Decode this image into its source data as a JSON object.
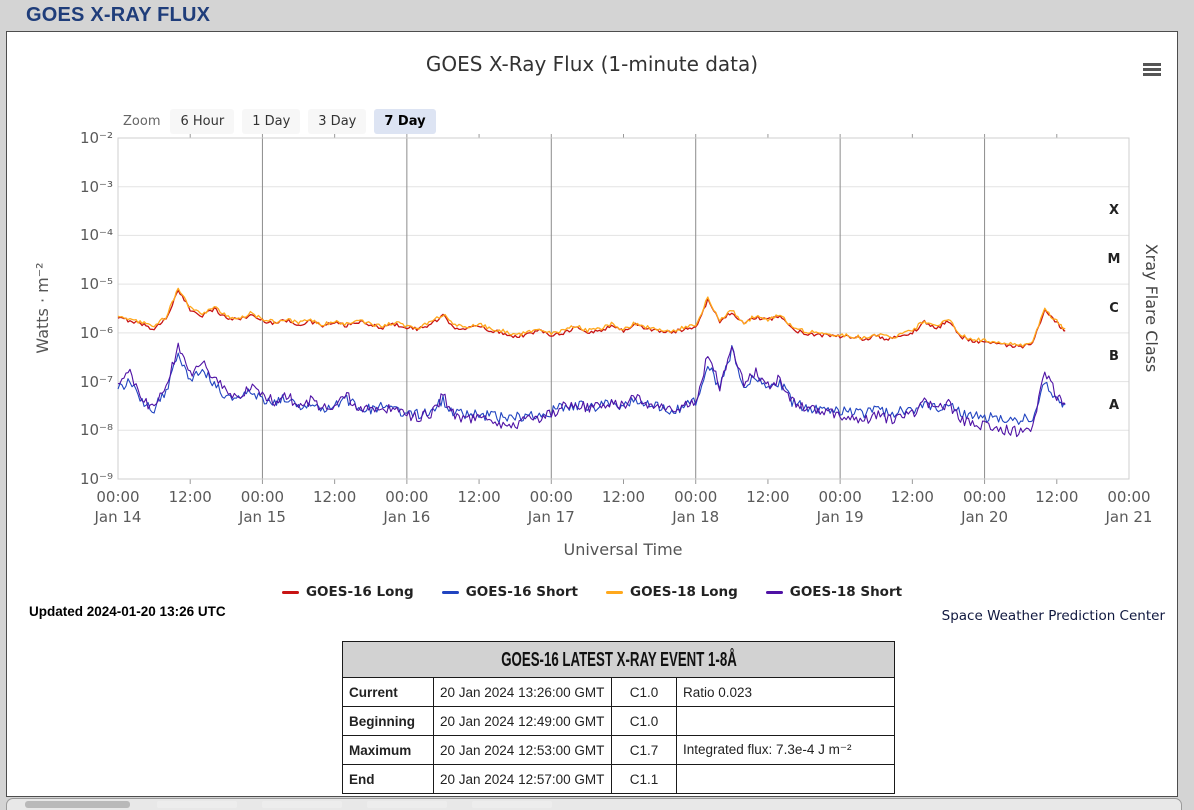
{
  "page": {
    "header_title": "GOES X-RAY FLUX"
  },
  "chart": {
    "title": "GOES X-Ray Flux (1-minute data)",
    "zoom": {
      "label": "Zoom",
      "buttons": [
        "6 Hour",
        "1 Day",
        "3 Day",
        "7 Day"
      ],
      "selected": "7 Day"
    },
    "yaxis": {
      "title": "Watts · m⁻²",
      "ticks": [
        "10⁻²",
        "10⁻³",
        "10⁻⁴",
        "10⁻⁵",
        "10⁻⁶",
        "10⁻⁷",
        "10⁻⁸",
        "10⁻⁹"
      ]
    },
    "raxis": {
      "title": "Xray Flare Class",
      "letters": [
        "X",
        "M",
        "C",
        "B",
        "A"
      ]
    },
    "xaxis": {
      "title": "Universal Time",
      "labels": [
        {
          "t": "00:00",
          "d": "Jan 14"
        },
        {
          "t": "12:00",
          "d": ""
        },
        {
          "t": "00:00",
          "d": "Jan 15"
        },
        {
          "t": "12:00",
          "d": ""
        },
        {
          "t": "00:00",
          "d": "Jan 16"
        },
        {
          "t": "12:00",
          "d": ""
        },
        {
          "t": "00:00",
          "d": "Jan 17"
        },
        {
          "t": "12:00",
          "d": ""
        },
        {
          "t": "00:00",
          "d": "Jan 18"
        },
        {
          "t": "12:00",
          "d": ""
        },
        {
          "t": "00:00",
          "d": "Jan 19"
        },
        {
          "t": "12:00",
          "d": ""
        },
        {
          "t": "00:00",
          "d": "Jan 20"
        },
        {
          "t": "12:00",
          "d": ""
        },
        {
          "t": "00:00",
          "d": "Jan 21"
        }
      ]
    },
    "legend": [
      {
        "label": "GOES-16 Long",
        "color": "#c81414"
      },
      {
        "label": "GOES-16 Short",
        "color": "#2144c0"
      },
      {
        "label": "GOES-18 Long",
        "color": "#ffa81c"
      },
      {
        "label": "GOES-18 Short",
        "color": "#4f12a5"
      }
    ],
    "updated": "Updated 2024-01-20 13:26 UTC",
    "credit": "Space Weather Prediction Center"
  },
  "chart_data": {
    "type": "line",
    "title": "GOES X-Ray Flux (1-minute data)",
    "xlabel": "Universal Time",
    "ylabel": "Watts · m⁻²",
    "y_scale": "log",
    "ylim": [
      1e-09,
      0.01
    ],
    "x_unit": "hours since Jan 14 00:00 UT",
    "xlim": [
      0,
      168
    ],
    "day_gridlines_hours": [
      24,
      48,
      72,
      96,
      120,
      144
    ],
    "flare_class_thresholds": {
      "A": 1e-08,
      "B": 1e-07,
      "C": 1e-06,
      "M": 1e-05,
      "X": 0.0001
    },
    "x": [
      0,
      2,
      4,
      6,
      8,
      10,
      12,
      14,
      16,
      18,
      20,
      22,
      24,
      26,
      28,
      30,
      32,
      34,
      36,
      38,
      40,
      42,
      44,
      46,
      48,
      50,
      52,
      54,
      56,
      58,
      60,
      62,
      64,
      66,
      68,
      70,
      72,
      74,
      76,
      78,
      80,
      82,
      84,
      86,
      88,
      90,
      92,
      94,
      96,
      98,
      100,
      102,
      104,
      106,
      108,
      110,
      112,
      114,
      116,
      118,
      120,
      122,
      124,
      126,
      128,
      130,
      132,
      134,
      136,
      138,
      140,
      142,
      144,
      146,
      148,
      150,
      152,
      154,
      156,
      157.4
    ],
    "series": [
      {
        "name": "GOES-16 Long",
        "color": "#c81414",
        "jitter": 0.04,
        "values": [
          2e-06,
          1.8e-06,
          1.5e-06,
          1.2e-06,
          2e-06,
          7.2e-06,
          3e-06,
          2.3e-06,
          3.1e-06,
          2e-06,
          1.9e-06,
          2.3e-06,
          1.8e-06,
          1.6e-06,
          1.8e-06,
          1.5e-06,
          1.7e-06,
          1.4e-06,
          1.6e-06,
          1.4e-06,
          1.7e-06,
          1.4e-06,
          1.3e-06,
          1.5e-06,
          1.3e-06,
          1.2e-06,
          1.5e-06,
          2.2e-06,
          1.3e-06,
          1.2e-06,
          1.4e-06,
          1.1e-06,
          1e-06,
          8.4e-07,
          9.3e-07,
          1.1e-06,
          9.3e-07,
          1e-06,
          1.3e-06,
          1e-06,
          1.1e-06,
          1.4e-06,
          1.1e-06,
          1.5e-06,
          1.2e-06,
          1.1e-06,
          1e-06,
          1.2e-06,
          1.3e-06,
          4.8e-06,
          1.7e-06,
          2.7e-06,
          1.5e-06,
          2.1e-06,
          1.8e-06,
          2.3e-06,
          1.2e-06,
          1e-06,
          9.3e-07,
          8.8e-07,
          8.4e-07,
          7.9e-07,
          7.4e-07,
          8.8e-07,
          7.4e-07,
          8.4e-07,
          1e-06,
          1.7e-06,
          1.2e-06,
          1.8e-06,
          8.4e-07,
          7e-07,
          6.5e-07,
          6e-07,
          5.6e-07,
          5.1e-07,
          6e-07,
          2.8e-06,
          1.6e-06,
          1.1e-06
        ]
      },
      {
        "name": "GOES-16 Short",
        "color": "#2144c0",
        "jitter": 0.11,
        "values": [
          7e-08,
          1e-07,
          3.5e-08,
          2.8e-08,
          6e-08,
          3.8e-07,
          1.2e-07,
          1.8e-07,
          9e-08,
          5e-08,
          4.5e-08,
          6e-08,
          4.5e-08,
          3.8e-08,
          4.5e-08,
          3.2e-08,
          3.8e-08,
          3e-08,
          3.2e-08,
          4.2e-08,
          3e-08,
          2.6e-08,
          3e-08,
          2.6e-08,
          2.3e-08,
          2.1e-08,
          2.4e-08,
          4.2e-08,
          2.3e-08,
          2e-08,
          2.2e-08,
          1.9e-08,
          1.8e-08,
          1.8e-08,
          2e-08,
          2.1e-08,
          2.4e-08,
          3e-08,
          3.4e-08,
          3e-08,
          3.1e-08,
          3.8e-08,
          3e-08,
          4.4e-08,
          3.3e-08,
          3e-08,
          2.6e-08,
          3e-08,
          3.8e-08,
          2.6e-07,
          7e-08,
          4.4e-07,
          8e-08,
          1.2e-07,
          7e-08,
          9.5e-08,
          3.8e-08,
          3e-08,
          2.7e-08,
          2.5e-08,
          2.4e-08,
          2.3e-08,
          2.2e-08,
          2.5e-08,
          2.3e-08,
          2.4e-08,
          2.6e-08,
          3.8e-08,
          2.8e-08,
          3.4e-08,
          2.2e-08,
          2e-08,
          1.9e-08,
          1.8e-08,
          1.7e-08,
          1.6e-08,
          1.9e-08,
          1.1e-07,
          4.5e-08,
          3.3e-08
        ]
      },
      {
        "name": "GOES-18 Long",
        "color": "#ffa81c",
        "jitter": 0.04,
        "values": [
          2.2e-06,
          1.9e-06,
          1.6e-06,
          1.3e-06,
          2.2e-06,
          7.8e-06,
          3.2e-06,
          2.5e-06,
          3.4e-06,
          2.2e-06,
          2e-06,
          2.5e-06,
          1.9e-06,
          1.7e-06,
          1.9e-06,
          1.6e-06,
          1.8e-06,
          1.5e-06,
          1.7e-06,
          1.5e-06,
          1.8e-06,
          1.5e-06,
          1.4e-06,
          1.6e-06,
          1.4e-06,
          1.3e-06,
          1.6e-06,
          2.4e-06,
          1.4e-06,
          1.3e-06,
          1.5e-06,
          1.2e-06,
          1.1e-06,
          9e-07,
          1e-06,
          1.2e-06,
          1e-06,
          1.1e-06,
          1.4e-06,
          1.1e-06,
          1.2e-06,
          1.5e-06,
          1.2e-06,
          1.6e-06,
          1.3e-06,
          1.2e-06,
          1.1e-06,
          1.3e-06,
          1.4e-06,
          5.2e-06,
          1.8e-06,
          2.9e-06,
          1.6e-06,
          2.3e-06,
          1.9e-06,
          2.5e-06,
          1.3e-06,
          1.1e-06,
          1e-06,
          9.5e-07,
          9e-07,
          8.5e-07,
          8e-07,
          9.5e-07,
          8e-07,
          9e-07,
          1.1e-06,
          1.8e-06,
          1.3e-06,
          1.9e-06,
          9e-07,
          7.5e-07,
          7e-07,
          6.5e-07,
          6e-07,
          5.5e-07,
          6.5e-07,
          3e-06,
          1.7e-06,
          1.2e-06
        ]
      },
      {
        "name": "GOES-18 Short",
        "color": "#4f12a5",
        "jitter": 0.11,
        "values": [
          9e-08,
          1.4e-07,
          4e-08,
          3e-08,
          8e-08,
          5e-07,
          1.5e-07,
          2.5e-07,
          1.2e-07,
          6e-08,
          5e-08,
          8e-08,
          5e-08,
          4e-08,
          5e-08,
          3.5e-08,
          4e-08,
          3e-08,
          3.5e-08,
          5e-08,
          3e-08,
          2.5e-08,
          3e-08,
          2.5e-08,
          2e-08,
          1.8e-08,
          2.2e-08,
          5e-08,
          2e-08,
          1.6e-08,
          2e-08,
          1.5e-08,
          1.4e-08,
          1.3e-08,
          1.6e-08,
          1.8e-08,
          2.2e-08,
          3e-08,
          3.5e-08,
          3e-08,
          3.2e-08,
          4e-08,
          3e-08,
          5e-08,
          3.5e-08,
          3e-08,
          2.5e-08,
          3e-08,
          4e-08,
          3.5e-07,
          8e-08,
          6e-07,
          9e-08,
          1.5e-07,
          8e-08,
          1.2e-07,
          4e-08,
          3e-08,
          2.5e-08,
          2.2e-08,
          2e-08,
          1.8e-08,
          1.6e-08,
          2e-08,
          1.7e-08,
          1.8e-08,
          2.2e-08,
          4e-08,
          2.5e-08,
          3.5e-08,
          1.6e-08,
          1.3e-08,
          1.2e-08,
          1.1e-08,
          1e-08,
          9e-09,
          1.2e-08,
          1.5e-07,
          5e-08,
          3.5e-08
        ]
      }
    ]
  },
  "event_table": {
    "title": "GOES-16 LATEST X-RAY EVENT 1-8Å",
    "rows": [
      {
        "label": "Current",
        "time": "20 Jan 2024 13:26:00 GMT",
        "class": "C1.0",
        "note": "Ratio 0.023"
      },
      {
        "label": "Beginning",
        "time": "20 Jan 2024 12:49:00 GMT",
        "class": "C1.0",
        "note": ""
      },
      {
        "label": "Maximum",
        "time": "20 Jan 2024 12:53:00 GMT",
        "class": "C1.7",
        "note": "Integrated flux: 7.3e-4 J m⁻²"
      },
      {
        "label": "End",
        "time": "20 Jan 2024 12:57:00 GMT",
        "class": "C1.1",
        "note": ""
      }
    ]
  }
}
